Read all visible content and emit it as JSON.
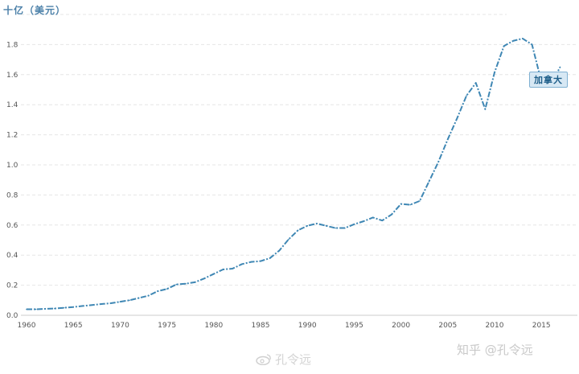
{
  "chart_data": {
    "type": "line",
    "unit_label": "十亿（美元）",
    "xlim": [
      1960,
      2018
    ],
    "ylim": [
      0,
      2.0
    ],
    "x_ticks": [
      1960,
      1965,
      1970,
      1975,
      1980,
      1985,
      1990,
      1995,
      2000,
      2005,
      2010,
      2015
    ],
    "y_ticks": [
      "0.0",
      "0.2",
      "0.4",
      "0.6",
      "0.8",
      "1.0",
      "1.2",
      "1.4",
      "1.6",
      "1.8"
    ],
    "grid": true,
    "series": [
      {
        "name": "加拿大",
        "color": "#3f87b4",
        "x": [
          1960,
          1961,
          1962,
          1963,
          1964,
          1965,
          1966,
          1967,
          1968,
          1969,
          1970,
          1971,
          1972,
          1973,
          1974,
          1975,
          1976,
          1977,
          1978,
          1979,
          1980,
          1981,
          1982,
          1983,
          1984,
          1985,
          1986,
          1987,
          1988,
          1989,
          1990,
          1991,
          1992,
          1993,
          1994,
          1995,
          1996,
          1997,
          1998,
          1999,
          2000,
          2001,
          2002,
          2003,
          2004,
          2005,
          2006,
          2007,
          2008,
          2009,
          2010,
          2011,
          2012,
          2013,
          2014,
          2015,
          2016,
          2017
        ],
        "y": [
          0.04,
          0.04,
          0.043,
          0.045,
          0.05,
          0.055,
          0.062,
          0.068,
          0.075,
          0.08,
          0.09,
          0.1,
          0.115,
          0.13,
          0.16,
          0.175,
          0.205,
          0.21,
          0.22,
          0.245,
          0.275,
          0.305,
          0.31,
          0.34,
          0.355,
          0.36,
          0.38,
          0.43,
          0.505,
          0.565,
          0.595,
          0.61,
          0.595,
          0.58,
          0.58,
          0.605,
          0.625,
          0.65,
          0.63,
          0.67,
          0.74,
          0.735,
          0.76,
          0.89,
          1.02,
          1.17,
          1.31,
          1.46,
          1.545,
          1.37,
          1.615,
          1.79,
          1.825,
          1.84,
          1.8,
          1.555,
          1.53,
          1.65
        ]
      }
    ]
  },
  "watermarks": {
    "zhihu": "知乎 @孔令远",
    "weibo": "孔令远"
  }
}
